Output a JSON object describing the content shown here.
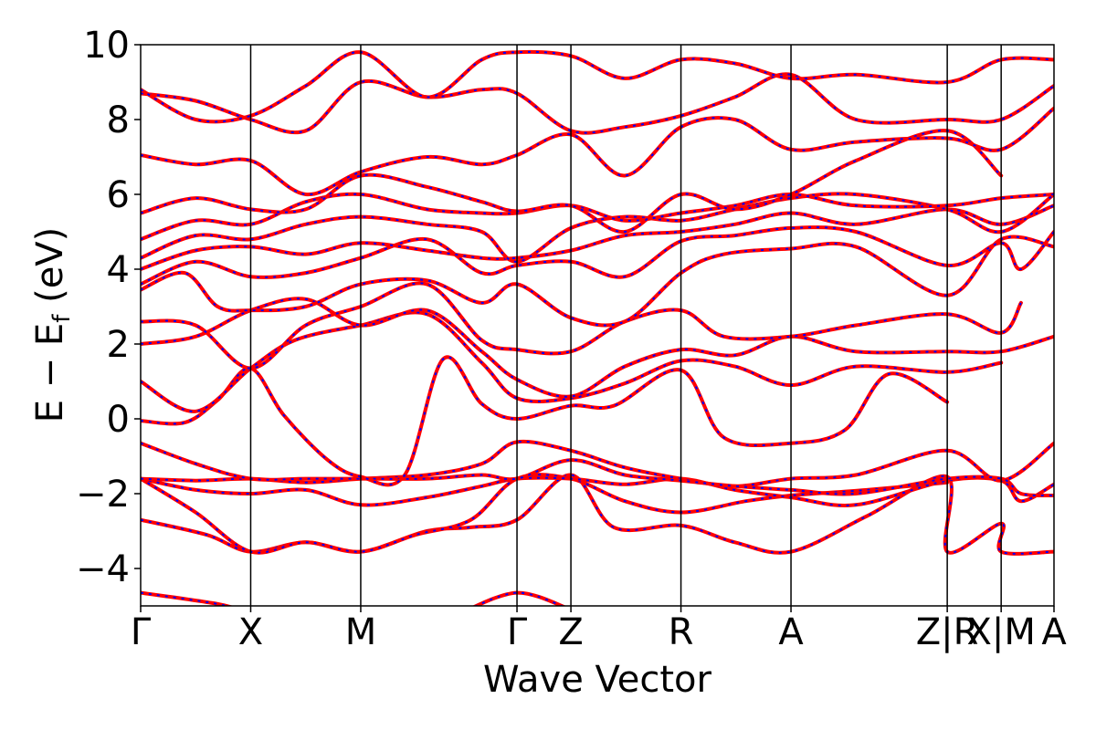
{
  "chart_data": {
    "type": "line",
    "title": "",
    "xlabel": "Wave Vector",
    "ylabel": {
      "prefix": "E − E",
      "sub": "f",
      "suffix": " (eV)"
    },
    "ylim": [
      -5,
      10
    ],
    "yticks": [
      {
        "value": 10,
        "label": "10"
      },
      {
        "value": 8,
        "label": "8"
      },
      {
        "value": 6,
        "label": "6"
      },
      {
        "value": 4,
        "label": "4"
      },
      {
        "value": 2,
        "label": "2"
      },
      {
        "value": 0,
        "label": "0"
      },
      {
        "value": -2,
        "label": "−2"
      },
      {
        "value": -4,
        "label": "−4"
      }
    ],
    "xlim": [
      0,
      8.3
    ],
    "kpoints": [
      {
        "x": 0.0,
        "label": "Γ"
      },
      {
        "x": 1.0,
        "label": "X"
      },
      {
        "x": 2.0,
        "label": "M"
      },
      {
        "x": 3.42,
        "label": "Γ"
      },
      {
        "x": 3.91,
        "label": "Z"
      },
      {
        "x": 4.91,
        "label": "R"
      },
      {
        "x": 5.91,
        "label": "A"
      },
      {
        "x": 7.33,
        "label": "Z|R"
      },
      {
        "x": 7.82,
        "label": "X|M"
      },
      {
        "x": 8.3,
        "label": "A"
      }
    ],
    "series_colors": {
      "primary": "#ff0000",
      "overlay": "#0000ff"
    },
    "bands": [
      [
        [
          0,
          -4.65
        ],
        [
          0.7,
          -4.95
        ],
        [
          1.0,
          -5.2
        ]
      ],
      [
        [
          2.9,
          -5.2
        ],
        [
          3.42,
          -4.65
        ],
        [
          3.91,
          -5.1
        ]
      ],
      [
        [
          0,
          -2.7
        ],
        [
          0.6,
          -3.1
        ],
        [
          1.0,
          -3.55
        ],
        [
          1.5,
          -3.3
        ],
        [
          2.0,
          -3.55
        ],
        [
          2.6,
          -3.0
        ],
        [
          3.0,
          -2.9
        ],
        [
          3.42,
          -2.7
        ],
        [
          3.91,
          -1.5
        ],
        [
          4.3,
          -2.9
        ],
        [
          4.91,
          -2.85
        ],
        [
          5.4,
          -3.3
        ],
        [
          5.91,
          -3.55
        ],
        [
          6.6,
          -2.6
        ],
        [
          7.33,
          -1.55
        ],
        [
          7.33,
          -3.55
        ],
        [
          7.82,
          -2.8
        ],
        [
          7.82,
          -3.55
        ],
        [
          8.3,
          -3.55
        ]
      ],
      [
        [
          0,
          -1.6
        ],
        [
          0.5,
          -2.5
        ],
        [
          1.0,
          -3.55
        ],
        [
          1.5,
          -3.3
        ],
        [
          2.0,
          -3.55
        ],
        [
          2.5,
          -3.1
        ],
        [
          3.0,
          -2.7
        ],
        [
          3.42,
          -1.6
        ],
        [
          3.91,
          -1.6
        ],
        [
          4.4,
          -2.2
        ],
        [
          4.91,
          -2.5
        ],
        [
          5.5,
          -2.2
        ],
        [
          5.91,
          -2.05
        ],
        [
          6.6,
          -1.9
        ],
        [
          7.33,
          -1.7
        ]
      ],
      [
        [
          0,
          -1.6
        ],
        [
          0.5,
          -1.9
        ],
        [
          1.0,
          -2.0
        ],
        [
          1.5,
          -1.9
        ],
        [
          2.0,
          -2.3
        ],
        [
          2.6,
          -2.1
        ],
        [
          3.1,
          -1.8
        ],
        [
          3.42,
          -1.6
        ],
        [
          3.91,
          -1.6
        ],
        [
          4.4,
          -1.75
        ],
        [
          4.91,
          -1.6
        ],
        [
          5.4,
          -1.9
        ],
        [
          5.91,
          -2.1
        ],
        [
          6.5,
          -2.3
        ],
        [
          7.33,
          -1.65
        ],
        [
          7.82,
          -1.65
        ],
        [
          8.0,
          -2.2
        ],
        [
          8.3,
          -1.75
        ]
      ],
      [
        [
          0,
          -1.6
        ],
        [
          0.5,
          -1.65
        ],
        [
          1.0,
          -1.6
        ],
        [
          1.5,
          -1.7
        ],
        [
          2.0,
          -1.6
        ],
        [
          2.6,
          -1.5
        ],
        [
          3.1,
          -1.2
        ],
        [
          3.42,
          -0.62
        ],
        [
          3.91,
          -0.85
        ],
        [
          4.4,
          -1.3
        ],
        [
          4.91,
          -1.6
        ],
        [
          5.4,
          -1.8
        ],
        [
          5.91,
          -1.6
        ],
        [
          6.5,
          -1.5
        ],
        [
          7.33,
          -0.85
        ],
        [
          7.82,
          -1.65
        ],
        [
          8.3,
          -0.65
        ]
      ],
      [
        [
          0,
          -0.65
        ],
        [
          0.5,
          -1.2
        ],
        [
          1.0,
          -1.6
        ],
        [
          1.5,
          -1.6
        ],
        [
          2.0,
          -1.6
        ],
        [
          2.6,
          -1.6
        ],
        [
          3.1,
          -1.5
        ],
        [
          3.42,
          -1.6
        ],
        [
          3.91,
          -1.1
        ],
        [
          4.4,
          -1.5
        ],
        [
          4.91,
          -1.65
        ],
        [
          5.4,
          -1.8
        ],
        [
          5.91,
          -1.9
        ],
        [
          6.5,
          -2.0
        ],
        [
          7.33,
          -1.6
        ],
        [
          7.82,
          -1.6
        ],
        [
          8.0,
          -2.0
        ],
        [
          8.3,
          -2.05
        ]
      ],
      [
        [
          0,
          -0.05
        ],
        [
          0.4,
          -0.1
        ],
        [
          0.7,
          0.5
        ],
        [
          1.0,
          1.35
        ],
        [
          1.3,
          0.1
        ],
        [
          1.7,
          -1.1
        ],
        [
          2.0,
          -1.55
        ],
        [
          2.4,
          -1.5
        ],
        [
          2.75,
          1.6
        ],
        [
          3.1,
          0.4
        ],
        [
          3.42,
          0.0
        ],
        [
          3.91,
          0.35
        ],
        [
          4.3,
          0.35
        ],
        [
          4.91,
          1.3
        ],
        [
          5.3,
          -0.5
        ],
        [
          5.91,
          -0.65
        ],
        [
          6.4,
          -0.3
        ],
        [
          6.8,
          1.2
        ],
        [
          7.33,
          0.45
        ]
      ],
      [
        [
          0,
          1.0
        ],
        [
          0.5,
          0.2
        ],
        [
          1.0,
          1.35
        ],
        [
          1.4,
          2.1
        ],
        [
          2.0,
          2.5
        ],
        [
          2.6,
          2.8
        ],
        [
          3.1,
          1.5
        ],
        [
          3.42,
          0.55
        ],
        [
          3.91,
          0.55
        ],
        [
          4.4,
          0.95
        ],
        [
          4.91,
          1.55
        ],
        [
          5.4,
          1.4
        ],
        [
          5.91,
          0.9
        ],
        [
          6.5,
          1.4
        ],
        [
          7.33,
          1.25
        ],
        [
          7.82,
          1.5
        ]
      ],
      [
        [
          0,
          2.0
        ],
        [
          0.5,
          2.2
        ],
        [
          1.0,
          2.9
        ],
        [
          1.5,
          3.2
        ],
        [
          2.0,
          2.5
        ],
        [
          2.6,
          2.9
        ],
        [
          3.1,
          1.8
        ],
        [
          3.42,
          1.05
        ],
        [
          3.91,
          0.6
        ],
        [
          4.4,
          1.4
        ],
        [
          4.91,
          1.85
        ],
        [
          5.4,
          1.7
        ],
        [
          5.91,
          2.2
        ],
        [
          6.5,
          1.8
        ],
        [
          7.33,
          1.8
        ],
        [
          7.82,
          1.8
        ],
        [
          8.3,
          2.2
        ]
      ],
      [
        [
          0,
          2.6
        ],
        [
          0.5,
          2.5
        ],
        [
          1.0,
          1.35
        ],
        [
          1.5,
          2.5
        ],
        [
          2.0,
          3.0
        ],
        [
          2.6,
          3.6
        ],
        [
          3.1,
          2.1
        ],
        [
          3.42,
          1.85
        ],
        [
          3.91,
          1.8
        ],
        [
          4.4,
          2.6
        ],
        [
          4.91,
          2.9
        ],
        [
          5.3,
          2.2
        ],
        [
          5.91,
          2.2
        ],
        [
          6.5,
          2.5
        ],
        [
          7.33,
          2.8
        ],
        [
          7.82,
          2.3
        ],
        [
          8.0,
          3.1
        ]
      ],
      [
        [
          0,
          3.45
        ],
        [
          0.4,
          3.9
        ],
        [
          0.7,
          3.0
        ],
        [
          1.0,
          2.9
        ],
        [
          1.5,
          3.0
        ],
        [
          2.0,
          3.6
        ],
        [
          2.6,
          3.7
        ],
        [
          3.1,
          3.1
        ],
        [
          3.42,
          3.6
        ],
        [
          3.91,
          2.7
        ],
        [
          4.4,
          2.6
        ],
        [
          4.91,
          3.9
        ],
        [
          5.3,
          4.4
        ],
        [
          5.91,
          4.55
        ],
        [
          6.5,
          4.6
        ],
        [
          7.33,
          3.3
        ],
        [
          7.82,
          4.8
        ],
        [
          8.3,
          4.6
        ]
      ],
      [
        [
          0,
          3.6
        ],
        [
          0.5,
          4.2
        ],
        [
          1.0,
          3.8
        ],
        [
          1.5,
          3.9
        ],
        [
          2.0,
          4.3
        ],
        [
          2.6,
          4.8
        ],
        [
          3.1,
          3.9
        ],
        [
          3.42,
          4.1
        ],
        [
          3.91,
          4.2
        ],
        [
          4.4,
          3.8
        ],
        [
          4.91,
          4.75
        ],
        [
          5.4,
          4.9
        ],
        [
          5.91,
          5.1
        ],
        [
          6.5,
          5.0
        ],
        [
          7.33,
          4.1
        ],
        [
          7.82,
          4.7
        ],
        [
          8.0,
          4.0
        ],
        [
          8.3,
          5.0
        ]
      ],
      [
        [
          0,
          4.0
        ],
        [
          0.5,
          4.5
        ],
        [
          1.0,
          4.6
        ],
        [
          1.5,
          4.4
        ],
        [
          2.0,
          4.7
        ],
        [
          2.6,
          4.5
        ],
        [
          3.1,
          4.3
        ],
        [
          3.42,
          4.3
        ],
        [
          3.91,
          4.5
        ],
        [
          4.4,
          4.9
        ],
        [
          4.91,
          5.0
        ],
        [
          5.4,
          5.2
        ],
        [
          5.91,
          5.5
        ],
        [
          6.5,
          5.2
        ],
        [
          7.33,
          5.6
        ],
        [
          7.82,
          5.2
        ],
        [
          8.3,
          5.7
        ]
      ],
      [
        [
          0,
          4.3
        ],
        [
          0.5,
          4.9
        ],
        [
          1.0,
          4.8
        ],
        [
          1.5,
          5.2
        ],
        [
          2.0,
          5.4
        ],
        [
          2.6,
          5.2
        ],
        [
          3.1,
          5.0
        ],
        [
          3.42,
          4.2
        ],
        [
          3.91,
          5.1
        ],
        [
          4.4,
          5.4
        ],
        [
          4.91,
          5.3
        ],
        [
          5.4,
          5.6
        ],
        [
          5.91,
          5.9
        ],
        [
          6.5,
          6.0
        ],
        [
          7.33,
          5.6
        ],
        [
          7.82,
          5.0
        ],
        [
          8.3,
          6.0
        ]
      ],
      [
        [
          0,
          4.8
        ],
        [
          0.5,
          5.3
        ],
        [
          1.0,
          5.2
        ],
        [
          1.5,
          5.8
        ],
        [
          2.0,
          6.0
        ],
        [
          2.6,
          5.6
        ],
        [
          3.1,
          5.5
        ],
        [
          3.42,
          5.5
        ],
        [
          3.91,
          5.7
        ],
        [
          4.4,
          5.3
        ],
        [
          4.91,
          5.5
        ],
        [
          5.4,
          5.7
        ],
        [
          5.91,
          6.0
        ],
        [
          6.5,
          5.7
        ],
        [
          7.33,
          5.7
        ],
        [
          7.82,
          5.9
        ],
        [
          8.3,
          6.0
        ]
      ],
      [
        [
          0,
          5.5
        ],
        [
          0.5,
          5.9
        ],
        [
          1.0,
          5.6
        ],
        [
          1.5,
          5.6
        ],
        [
          2.0,
          6.5
        ],
        [
          2.6,
          6.2
        ],
        [
          3.1,
          5.8
        ],
        [
          3.42,
          5.55
        ],
        [
          3.91,
          5.7
        ],
        [
          4.4,
          5.0
        ],
        [
          4.91,
          6.0
        ],
        [
          5.4,
          5.6
        ],
        [
          5.91,
          6.0
        ],
        [
          6.5,
          6.9
        ],
        [
          7.33,
          7.7
        ],
        [
          7.82,
          6.5
        ]
      ],
      [
        [
          0,
          7.05
        ],
        [
          0.5,
          6.8
        ],
        [
          1.0,
          6.9
        ],
        [
          1.5,
          6.0
        ],
        [
          2.0,
          6.6
        ],
        [
          2.6,
          7.0
        ],
        [
          3.1,
          6.8
        ],
        [
          3.42,
          7.05
        ],
        [
          3.91,
          7.6
        ],
        [
          4.4,
          6.5
        ],
        [
          4.91,
          7.8
        ],
        [
          5.4,
          8.0
        ],
        [
          5.91,
          7.2
        ],
        [
          6.5,
          7.4
        ],
        [
          7.33,
          7.5
        ],
        [
          7.82,
          7.2
        ],
        [
          8.3,
          8.3
        ]
      ],
      [
        [
          0,
          8.7
        ],
        [
          0.5,
          8.5
        ],
        [
          1.0,
          8.0
        ],
        [
          1.5,
          7.7
        ],
        [
          2.0,
          9.0
        ],
        [
          2.6,
          8.6
        ],
        [
          3.1,
          8.8
        ],
        [
          3.42,
          8.7
        ],
        [
          3.91,
          7.7
        ],
        [
          4.4,
          7.8
        ],
        [
          4.91,
          8.1
        ],
        [
          5.4,
          8.6
        ],
        [
          5.91,
          9.2
        ],
        [
          6.5,
          8.0
        ],
        [
          7.33,
          8.0
        ],
        [
          7.82,
          8.0
        ],
        [
          8.3,
          8.9
        ]
      ],
      [
        [
          0,
          8.8
        ],
        [
          0.5,
          8.0
        ],
        [
          1.0,
          8.1
        ],
        [
          1.5,
          8.9
        ],
        [
          2.0,
          9.8
        ],
        [
          2.6,
          8.6
        ],
        [
          3.1,
          9.6
        ],
        [
          3.42,
          9.8
        ],
        [
          3.91,
          9.7
        ],
        [
          4.4,
          9.1
        ],
        [
          4.91,
          9.6
        ],
        [
          5.4,
          9.5
        ],
        [
          5.91,
          9.1
        ],
        [
          6.5,
          9.2
        ],
        [
          7.33,
          9.0
        ],
        [
          7.82,
          9.6
        ],
        [
          8.3,
          9.6
        ]
      ]
    ]
  }
}
